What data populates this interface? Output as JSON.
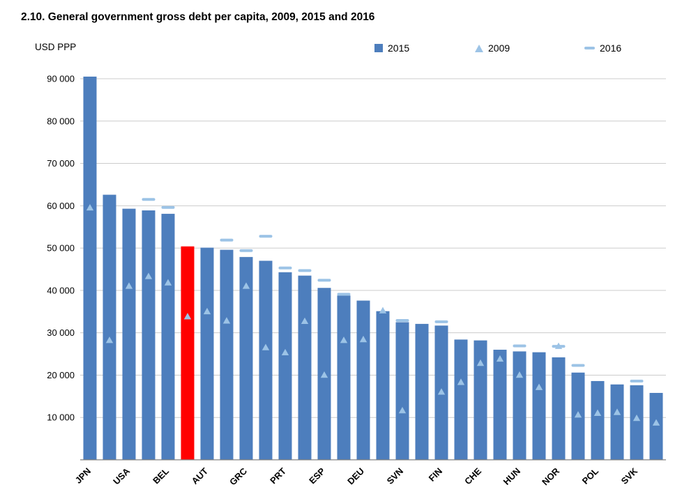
{
  "title": "2.10. General government gross debt per capita, 2009, 2015 and 2016",
  "axis_unit": "USD PPP",
  "legend": [
    {
      "label": "2015",
      "marker": "square",
      "color": "#4d7ebd"
    },
    {
      "label": "2009",
      "marker": "triangle",
      "color": "#9cc3e6"
    },
    {
      "label": "2016",
      "marker": "dash",
      "color": "#9cc3e6"
    }
  ],
  "colors": {
    "bar": "#4d7ebd",
    "highlight": "#ff0000",
    "marker": "#9cc3e6",
    "gridline": "#cccccc",
    "axis": "#808080"
  },
  "chart_data": {
    "type": "bar",
    "title": "2.10. General government gross debt per capita, 2009, 2015 and 2016",
    "xlabel": "",
    "ylabel": "USD PPP",
    "ylim": [
      0,
      90000
    ],
    "yticks": [
      10000,
      20000,
      30000,
      40000,
      50000,
      60000,
      70000,
      80000,
      90000
    ],
    "ytick_labels": [
      "10 000",
      "20 000",
      "30 000",
      "40 000",
      "50 000",
      "60 000",
      "70 000",
      "80 000",
      "90 000"
    ],
    "grid": true,
    "legend_position": "top-right",
    "note": "Only every second bar carries a visible country label in the source image; unlabeled bars are empty strings. Bar at index 5 is highlighted red.",
    "categories": [
      "JPN",
      "",
      "USA",
      "",
      "BEL",
      "",
      "AUT",
      "",
      "GRC",
      "",
      "PRT",
      "",
      "ESP",
      "",
      "DEU",
      "",
      "SVN",
      "",
      "FIN",
      "",
      "CHE",
      "",
      "HUN",
      "",
      "NOR",
      "",
      "POL",
      "",
      "SVK",
      ""
    ],
    "highlight_bar": {
      "index": 5,
      "color": "#ff0000"
    },
    "series": [
      {
        "name": "2015",
        "type": "bar",
        "color": "#4d7ebd",
        "values": [
          90500,
          62600,
          59300,
          58900,
          58100,
          50400,
          50100,
          49600,
          47900,
          47000,
          44300,
          43500,
          40600,
          38800,
          37600,
          35100,
          32500,
          32100,
          31700,
          28400,
          28200,
          26000,
          25600,
          25400,
          24200,
          20600,
          18600,
          17800,
          17600,
          15800
        ]
      },
      {
        "name": "2009",
        "type": "triangle-marker",
        "color": "#9cc3e6",
        "values": [
          59500,
          28200,
          41000,
          43300,
          41800,
          33800,
          35000,
          32800,
          41000,
          26500,
          25300,
          32700,
          20000,
          28200,
          28400,
          35200,
          11600,
          null,
          16000,
          18300,
          22800,
          23800,
          20000,
          17100,
          26800,
          10600,
          11000,
          11200,
          9800,
          8700
        ]
      },
      {
        "name": "2016",
        "type": "dash-marker",
        "color": "#9cc3e6",
        "values": [
          null,
          null,
          null,
          61500,
          59600,
          null,
          null,
          51900,
          49400,
          52800,
          45300,
          44700,
          42400,
          39100,
          null,
          null,
          32900,
          null,
          32600,
          null,
          null,
          null,
          26900,
          null,
          26800,
          22300,
          null,
          null,
          18600,
          null
        ]
      }
    ]
  }
}
